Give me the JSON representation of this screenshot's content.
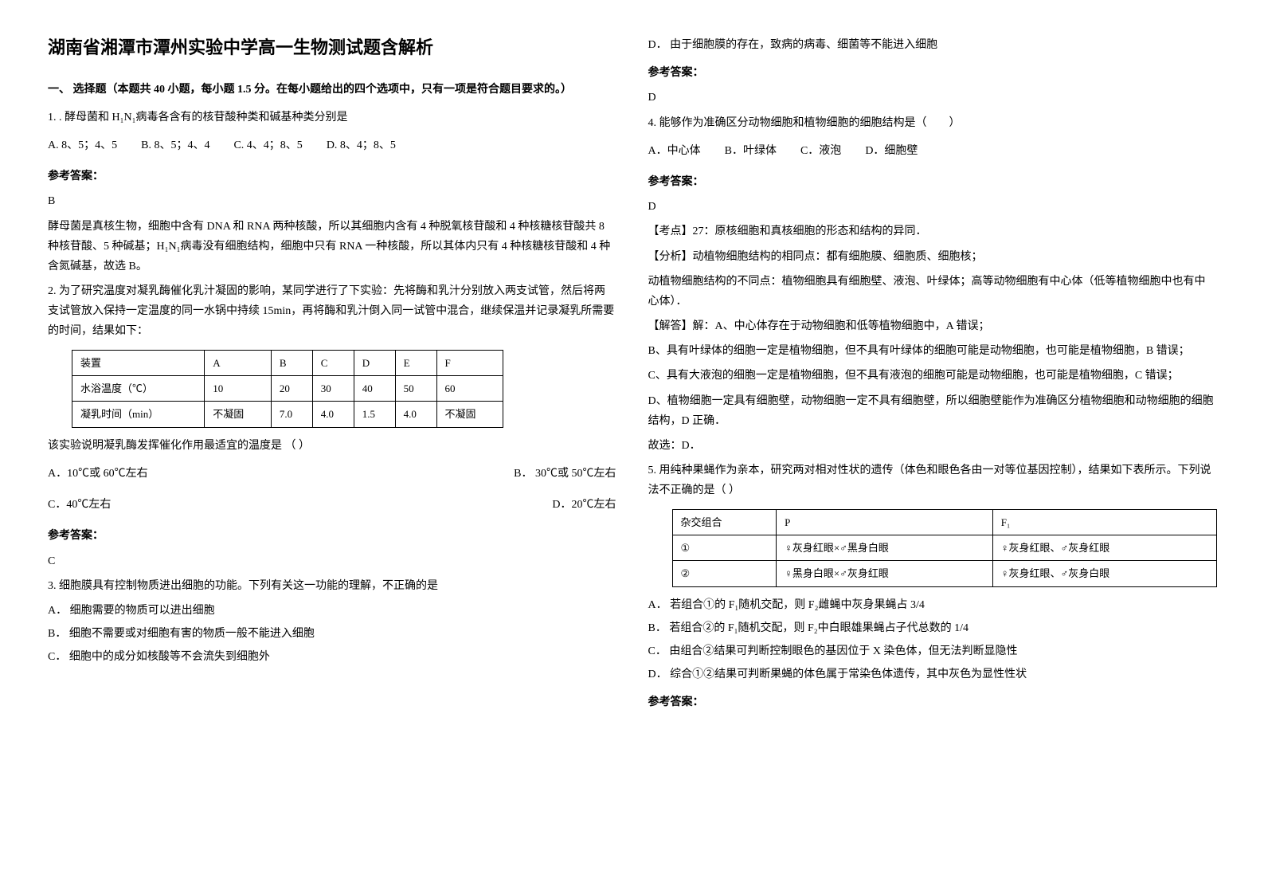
{
  "title": "湖南省湘潭市潭州实验中学高一生物测试题含解析",
  "section1_title": "一、 选择题（本题共 40 小题，每小题 1.5 分。在每小题给出的四个选项中，只有一项是符合题目要求的。）",
  "q1": {
    "stem": "1. . 酵母菌和 H₁N₁病毒各含有的核苷酸种类和碱基种类分别是",
    "optA": "A. 8、5；4、5",
    "optB": "B. 8、5；4、4",
    "optC": "C. 4、4；8、5",
    "optD": "D. 8、4；8、5",
    "answer_label": "参考答案：",
    "answer": "B",
    "explain": "酵母菌是真核生物，细胞中含有 DNA 和 RNA 两种核酸，所以其细胞内含有 4 种脱氧核苷酸和 4 种核糖核苷酸共 8 种核苷酸、5 种碱基；H₁N₁病毒没有细胞结构，细胞中只有 RNA 一种核酸，所以其体内只有 4 种核糖核苷酸和 4 种含氮碱基，故选 B。"
  },
  "q2": {
    "stem": "2. 为了研究温度对凝乳酶催化乳汁凝固的影响，某同学进行了下实验：先将酶和乳汁分别放入两支试管，然后将两支试管放入保持一定温度的同一水锅中持续 15min，再将酶和乳汁倒入同一试管中混合，继续保温并记录凝乳所需要的时间，结果如下：",
    "t_headers": [
      "装置",
      "A",
      "B",
      "C",
      "D",
      "E",
      "F"
    ],
    "t_row1": [
      "水浴温度（℃）",
      "10",
      "20",
      "30",
      "40",
      "50",
      "60"
    ],
    "t_row2": [
      "凝乳时间（min）",
      "不凝固",
      "7.0",
      "4.0",
      "1.5",
      "4.0",
      "不凝固"
    ],
    "after": "该实验说明凝乳酶发挥催化作用最适宜的温度是 （    ）",
    "optA": "A．10℃或 60℃左右",
    "optB": "B． 30℃或 50℃左右",
    "optC": "C．40℃左右",
    "optD": "D．20℃左右",
    "answer_label": "参考答案：",
    "answer": "C"
  },
  "q3": {
    "stem": "3. 细胞膜具有控制物质进出细胞的功能。下列有关这一功能的理解，不正确的是",
    "optA": "A． 细胞需要的物质可以进出细胞",
    "optB": "B． 细胞不需要或对细胞有害的物质一般不能进入细胞",
    "optC": "C． 细胞中的成分如核酸等不会流失到细胞外",
    "optD": "D． 由于细胞膜的存在，致病的病毒、细菌等不能进入细胞",
    "answer_label": "参考答案：",
    "answer": "D"
  },
  "q4": {
    "stem": "4. 能够作为准确区分动物细胞和植物细胞的细胞结构是（　　）",
    "optA": "A．中心体",
    "optB": "B．叶绿体",
    "optC": "C．液泡",
    "optD": "D．细胞壁",
    "answer_label": "参考答案：",
    "answer": "D",
    "kp": "【考点】27：原核细胞和真核细胞的形态和结构的异同．",
    "fx": "【分析】动植物细胞结构的相同点：都有细胞膜、细胞质、细胞核；",
    "fx2": "动植物细胞结构的不同点：植物细胞具有细胞壁、液泡、叶绿体；高等动物细胞有中心体（低等植物细胞中也有中心体）．",
    "jd": "【解答】解：A、中心体存在于动物细胞和低等植物细胞中，A 错误；",
    "jdB": "B、具有叶绿体的细胞一定是植物细胞，但不具有叶绿体的细胞可能是动物细胞，也可能是植物细胞，B 错误；",
    "jdC": "C、具有大液泡的细胞一定是植物细胞，但不具有液泡的细胞可能是动物细胞，也可能是植物细胞，C 错误；",
    "jdD": "D、植物细胞一定具有细胞壁，动物细胞一定不具有细胞壁，所以细胞壁能作为准确区分植物细胞和动物细胞的细胞结构，D 正确．",
    "gx": "故选：D．"
  },
  "q5": {
    "stem": "5. 用纯种果蝇作为亲本，研究两对相对性状的遗传（体色和眼色各由一对等位基因控制），结果如下表所示。下列说法不正确的是（    ）",
    "t_headers": [
      "杂交组合",
      "P",
      "F₁"
    ],
    "t_row1": [
      "①",
      "♀灰身红眼×♂黑身白眼",
      "♀灰身红眼、♂灰身红眼"
    ],
    "t_row2": [
      "②",
      "♀黑身白眼×♂灰身红眼",
      "♀灰身红眼、♂灰身白眼"
    ],
    "optA": "A． 若组合①的 F₁随机交配，则 F₂雌蝇中灰身果蝇占 3/4",
    "optB": "B． 若组合②的 F₁随机交配，则 F₂中白眼雄果蝇占子代总数的 1/4",
    "optC": "C． 由组合②结果可判断控制眼色的基因位于 X 染色体，但无法判断显隐性",
    "optD": "D． 综合①②结果可判断果蝇的体色属于常染色体遗传，其中灰色为显性性状",
    "answer_label": "参考答案："
  }
}
